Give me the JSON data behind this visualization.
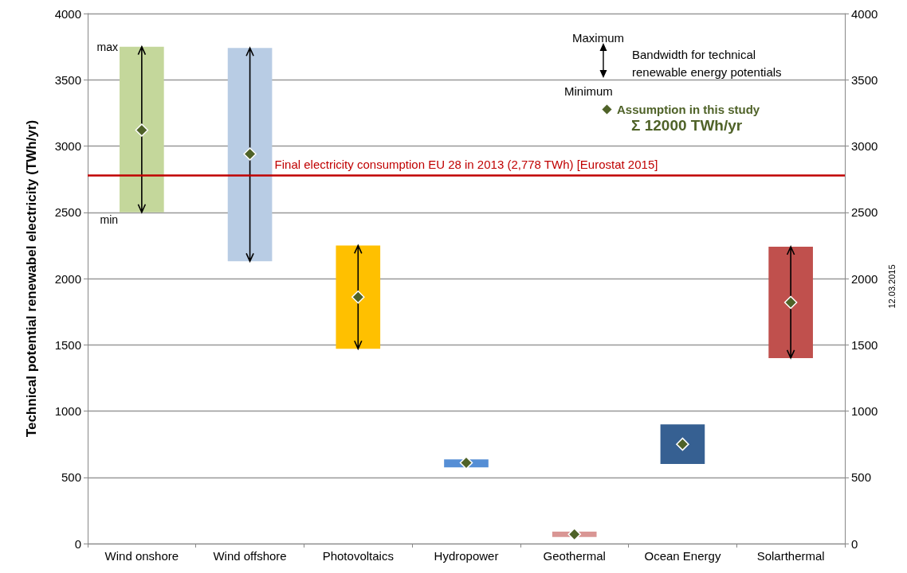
{
  "chart_data": {
    "type": "bar",
    "ylabel": "Technical potential renewabel electricity (TWh/yr)",
    "categories": [
      "Wind onshore",
      "Wind offshore",
      "Photovoltaics",
      "Hydropower",
      "Geothermal",
      "Ocean Energy",
      "Solarthermal"
    ],
    "base": [
      2500,
      2130,
      1470,
      575,
      50,
      600,
      1400
    ],
    "values": [
      1250,
      1610,
      780,
      60,
      40,
      300,
      840
    ],
    "colors": [
      "#c4d79b",
      "#b8cce4",
      "#ffc000",
      "#558ed5",
      "#d99694",
      "#366092",
      "#c0504d"
    ],
    "series": [
      {
        "type": "scatter",
        "name": "Assumption in this study",
        "color": "#4f6228",
        "x": [
          "Wind onshore",
          "Wind offshore",
          "Photovoltaics",
          "Hydropower",
          "Geothermal",
          "Ocean Energy",
          "Solarthermal"
        ],
        "values": [
          3120,
          2940,
          1860,
          610,
          70,
          750,
          1820
        ],
        "errors": [
          [
            2500,
            3750
          ],
          [
            2130,
            3740
          ],
          [
            1470,
            2250
          ],
          null,
          null,
          null,
          [
            1400,
            2240
          ]
        ]
      }
    ],
    "marker": "diamond",
    "ylim": [
      0,
      4000
    ],
    "yticks": [
      0,
      500,
      1000,
      1500,
      2000,
      2500,
      3000,
      3500,
      4000
    ],
    "y2lim": [
      0,
      4000
    ],
    "y2ticks": [
      0,
      500,
      1000,
      1500,
      2000,
      2500,
      3000,
      3500,
      4000
    ],
    "grid": "y",
    "legend": "top right",
    "ref_lines": [
      {
        "axis": "y",
        "value": 2778,
        "label": "Final electricity consumption EU 28 in 2013 (2,778 TWh) [Eurostat 2015]",
        "color": "#c00000"
      }
    ],
    "annotations": [
      {
        "text": "max",
        "x": "Wind onshore",
        "y": 3750
      },
      {
        "text": "min",
        "x": "Wind onshore",
        "y": 2500
      },
      "Maximum",
      "Bandwidth for technical renewable energy potentials",
      "Minimum",
      "Σ 12000 TWh/yr",
      "12.03.2015"
    ]
  }
}
